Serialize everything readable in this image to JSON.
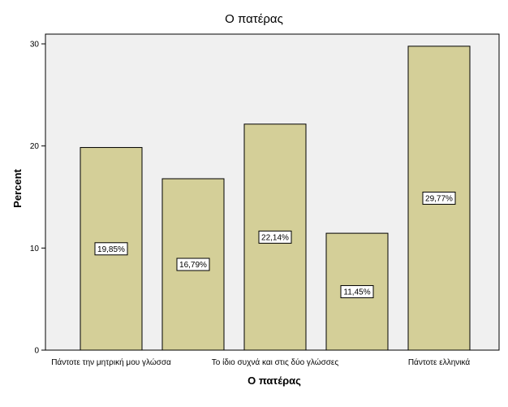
{
  "chart_data": {
    "type": "bar",
    "title": "Ο πατέρας",
    "xlabel": "Ο πατέρας",
    "ylabel": "Percent",
    "ylim": [
      0,
      30
    ],
    "yticks": [
      "0",
      "10",
      "20",
      "30"
    ],
    "categories": [
      "Πάντοτε την μητρική μου γλώσσα",
      "",
      "Το ίδιο συχνά και στις δύο γλώσσες",
      "",
      "Πάντοτε ελληνικά"
    ],
    "values": [
      19.85,
      16.79,
      22.14,
      11.45,
      29.77
    ],
    "data_labels": [
      "19,85%",
      "16,79%",
      "22,14%",
      "11,45%",
      "29,77%"
    ],
    "grid": false,
    "colors": {
      "bar_fill": "#d4cf98",
      "bar_stroke": "#000000",
      "plot_background": "#f0f0f0",
      "page_background": "#ffffff"
    }
  }
}
